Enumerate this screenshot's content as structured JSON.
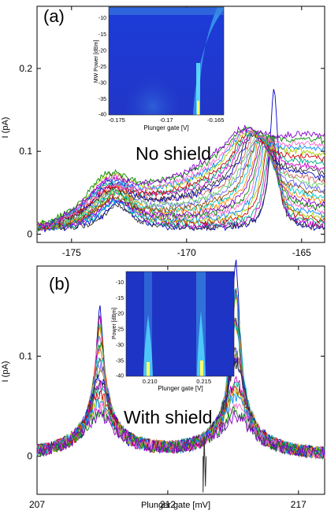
{
  "chart_data": [
    {
      "type": "line",
      "panel_label": "(a)",
      "annotation": "No shield",
      "ylabel": "I (pA)",
      "xlabel": "",
      "xlim": [
        -176.5,
        -164
      ],
      "ylim": [
        -0.01,
        0.275
      ],
      "xticks": [
        -175,
        -170,
        -165
      ],
      "xtick_labels": [
        "-175",
        "-170",
        "-165"
      ],
      "yticks": [
        0,
        0.1,
        0.2
      ],
      "ytick_labels": [
        "0",
        "0.1",
        "0.2"
      ],
      "curve_count": 26,
      "peaks": [
        {
          "x": -173.0,
          "height": 0.05
        },
        {
          "x": -166.2,
          "height": 0.17
        }
      ],
      "inset": {
        "type": "heatmap",
        "xlabel": "Plunger gate [V]",
        "ylabel": "MW Power [dBm]",
        "xtick_labels": [
          "-0.175",
          "-0.17",
          "-0.165"
        ],
        "ytick_labels": [
          "-10",
          "-15",
          "-20",
          "-25",
          "-30",
          "-35",
          "-40"
        ]
      }
    },
    {
      "type": "line",
      "panel_label": "(b)",
      "annotation": "With shield",
      "ylabel": "I (pA)",
      "xlabel": "Plunger gate [mV]",
      "xlim": [
        207,
        218
      ],
      "ylim": [
        -0.038,
        0.19
      ],
      "xticks": [
        207,
        212,
        217
      ],
      "xtick_labels": [
        "207",
        "212",
        "217"
      ],
      "yticks": [
        0,
        0.1
      ],
      "ytick_labels": [
        "0",
        "0.1"
      ],
      "curve_count": 26,
      "peaks": [
        {
          "x": 209.4,
          "height": 0.14
        },
        {
          "x": 214.6,
          "height": 0.18
        }
      ],
      "inset": {
        "type": "heatmap",
        "xlabel": "Plunger gate [V]",
        "ylabel": "Power [dBm]",
        "xtick_labels": [
          "0.210",
          "0.215"
        ],
        "ytick_labels": [
          "-10",
          "-15",
          "-20",
          "-25",
          "-30",
          "-35",
          "-40"
        ]
      }
    }
  ],
  "colors": {
    "series": [
      "#0000cc",
      "#333333",
      "#cc00cc",
      "#00aa88",
      "#cc0000",
      "#aacc00",
      "#0088ff",
      "#ff66cc",
      "#008800",
      "#8800cc",
      "#ff8800",
      "#00cccc",
      "#994400",
      "#6666ff",
      "#66cc66",
      "#cc6666"
    ],
    "heatmap_low": "#1a2ac8",
    "heatmap_high": "#ffff66"
  }
}
